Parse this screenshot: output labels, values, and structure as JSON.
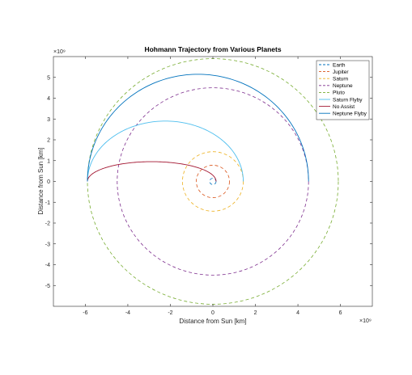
{
  "chart_data": {
    "type": "line",
    "title": "Hohmann Trajectory from Various Planets",
    "xlabel": "Distance from Sun [km]",
    "ylabel": "Distance from Sun [km]",
    "x_exponent_label": "×10⁹",
    "y_exponent_label": "×10⁹",
    "x_multiplier_exponent": 9,
    "y_multiplier_exponent": 9,
    "xlim": [
      -7.5,
      7.5
    ],
    "ylim": [
      -6,
      6
    ],
    "xticks": [
      -6,
      -4,
      -2,
      0,
      2,
      4,
      6
    ],
    "yticks": [
      -5,
      -4,
      -3,
      -2,
      -1,
      0,
      1,
      2,
      3,
      4,
      5
    ],
    "grid": false,
    "legend_position": "top-right",
    "series": [
      {
        "name": "Earth",
        "kind": "orbit",
        "style": "dashed",
        "color": "#0072BD",
        "center": [
          0,
          0
        ],
        "radius": 0.15
      },
      {
        "name": "Jupiter",
        "kind": "orbit",
        "style": "dashed",
        "color": "#D95319",
        "center": [
          0,
          0
        ],
        "radius": 0.78
      },
      {
        "name": "Saturn",
        "kind": "orbit",
        "style": "dashed",
        "color": "#EDB120",
        "center": [
          0,
          0
        ],
        "radius": 1.43
      },
      {
        "name": "Neptune",
        "kind": "orbit",
        "style": "dashed",
        "color": "#7E2F8E",
        "center": [
          0,
          0
        ],
        "radius": 4.5
      },
      {
        "name": "Pluto",
        "kind": "orbit",
        "style": "dashed",
        "color": "#77AC30",
        "center": [
          0,
          0
        ],
        "radius": 5.9
      },
      {
        "name": "Saturn Flyby",
        "kind": "half-ellipse",
        "style": "solid",
        "color": "#4DBEEE",
        "x_start": 1.43,
        "x_end": -5.9,
        "peak_y": 2.9
      },
      {
        "name": "No Assist",
        "kind": "half-ellipse",
        "style": "solid",
        "color": "#A2142F",
        "x_start": 0.15,
        "x_end": -5.9,
        "peak_y": 0.95
      },
      {
        "name": "Neptune Flyby",
        "kind": "half-ellipse",
        "style": "solid",
        "color": "#0072BD",
        "x_start": 4.5,
        "x_end": -5.9,
        "peak_y": 5.15
      }
    ]
  }
}
